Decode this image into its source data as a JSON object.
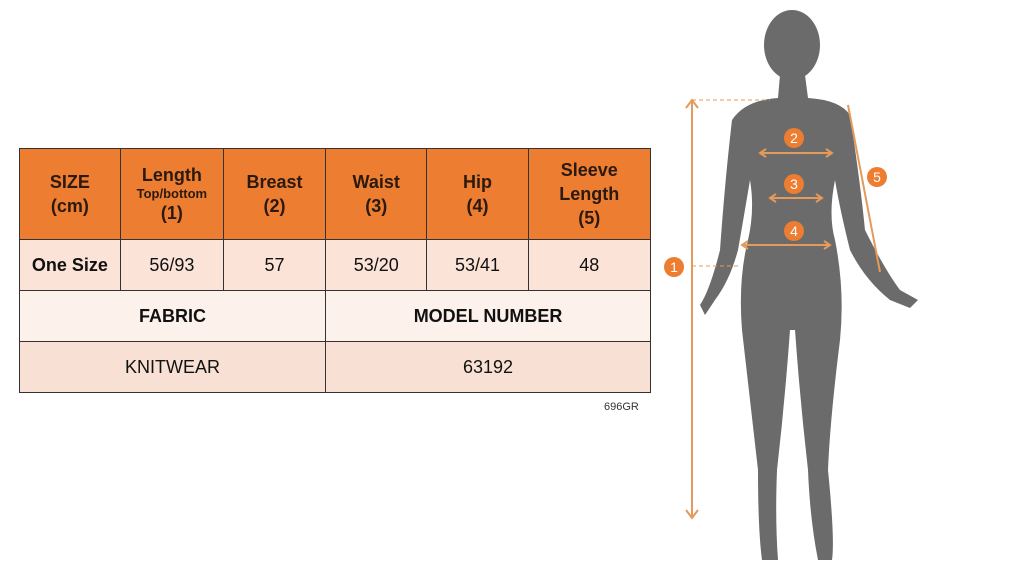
{
  "table": {
    "headers": [
      {
        "main": "SIZE",
        "sub": "",
        "num": "(cm)"
      },
      {
        "main": "Length",
        "sub": "Top/bottom",
        "num": "(1)"
      },
      {
        "main": "Breast",
        "sub": "",
        "num": "(2)"
      },
      {
        "main": "Waist",
        "sub": "",
        "num": "(3)"
      },
      {
        "main": "Hip",
        "sub": "",
        "num": "(4)"
      },
      {
        "main": "Sleeve Length",
        "sub": "",
        "num": "(5)"
      }
    ],
    "row": [
      "One Size",
      "56/93",
      "57",
      "53/20",
      "53/41",
      "48"
    ],
    "fabric_label": "FABRIC",
    "model_label": "MODEL NUMBER",
    "fabric_value": "KNITWEAR",
    "model_value": "63192"
  },
  "code": "696GR",
  "diagram": {
    "markers": [
      "1",
      "2",
      "3",
      "4",
      "5"
    ],
    "accent": "#ED7D31",
    "silhouette": "#6b6b6b"
  }
}
